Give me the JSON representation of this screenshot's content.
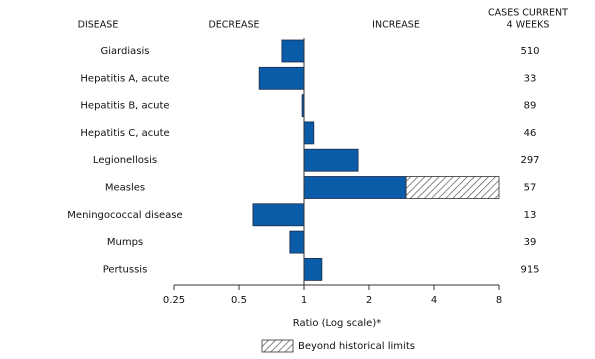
{
  "chart_data": {
    "type": "bar",
    "orientation": "horizontal",
    "log_scale": true,
    "header_disease": "DISEASE",
    "header_decrease": "DECREASE",
    "header_increase": "INCREASE",
    "header_cases": [
      "CASES CURRENT",
      "4 WEEKS"
    ],
    "categories": [
      "Giardiasis",
      "Hepatitis A, acute",
      "Hepatitis B, acute",
      "Hepatitis C, acute",
      "Legionellosis",
      "Measles",
      "Meningococcal disease",
      "Mumps",
      "Pertussis"
    ],
    "values": [
      0.79,
      0.62,
      0.98,
      1.11,
      1.78,
      8,
      0.58,
      0.86,
      1.21
    ],
    "historical_limits": [
      null,
      null,
      null,
      null,
      null,
      2.97,
      null,
      null,
      null
    ],
    "cases": [
      510,
      33,
      89,
      46,
      297,
      57,
      13,
      39,
      915
    ],
    "color": "#0b5ca8",
    "xlim": [
      0.25,
      8
    ],
    "xticks": [
      0.25,
      0.5,
      1,
      2,
      4,
      8
    ],
    "xlabel": "Ratio (Log scale)*",
    "legend_label": "Beyond historical limits"
  }
}
